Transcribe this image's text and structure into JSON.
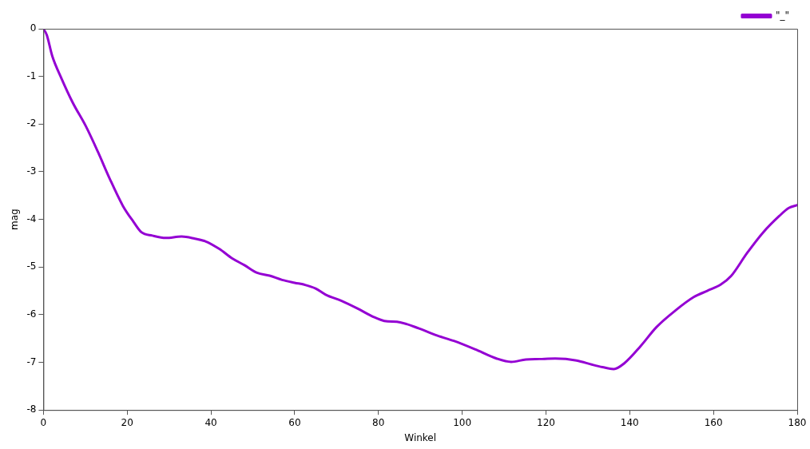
{
  "chart_data": {
    "type": "line",
    "xlabel": "Winkel",
    "ylabel": "mag",
    "xlim": [
      0,
      180
    ],
    "xticks": [
      0,
      20,
      40,
      60,
      80,
      100,
      120,
      140,
      160,
      180
    ],
    "ylim": [
      -8,
      0
    ],
    "yticks": [
      -8,
      -7,
      -6,
      -5,
      -4,
      -3,
      -2,
      -1,
      0
    ],
    "grid": false,
    "legend": "top right",
    "marker": "none",
    "line_style": "solid",
    "series": [
      {
        "name": "\"_\"",
        "color": "#9400d3",
        "x": [
          0,
          0.8,
          2.1,
          4.3,
          7,
          10.1,
          13,
          15.8,
          19,
          21.5,
          23.4,
          26,
          29.2,
          33,
          36,
          38.7,
          42,
          45.1,
          48,
          51,
          54,
          57,
          60,
          62.3,
          65,
          67.4,
          71.2,
          75,
          78.9,
          81.4,
          85.2,
          89.7,
          94.1,
          98,
          103.7,
          108.2,
          111.7,
          115.2,
          118.5,
          122.2,
          127.3,
          131.1,
          133.5,
          136.2,
          138.7,
          142.6,
          146.4,
          150.8,
          155.3,
          158.5,
          161.7,
          164.2,
          168,
          171.9,
          175.7,
          178,
          180
        ],
        "values": [
          0,
          -0.13,
          -0.57,
          -1.04,
          -1.55,
          -2.04,
          -2.58,
          -3.14,
          -3.72,
          -4.05,
          -4.27,
          -4.34,
          -4.39,
          -4.36,
          -4.4,
          -4.46,
          -4.62,
          -4.82,
          -4.96,
          -5.12,
          -5.18,
          -5.27,
          -5.33,
          -5.37,
          -5.45,
          -5.58,
          -5.71,
          -5.87,
          -6.05,
          -6.13,
          -6.16,
          -6.29,
          -6.44,
          -6.55,
          -6.75,
          -6.92,
          -6.99,
          -6.94,
          -6.93,
          -6.92,
          -6.96,
          -7.05,
          -7.1,
          -7.14,
          -7.02,
          -6.66,
          -6.26,
          -5.92,
          -5.63,
          -5.5,
          -5.37,
          -5.19,
          -4.71,
          -4.27,
          -3.93,
          -3.76,
          -3.7
        ]
      }
    ]
  }
}
